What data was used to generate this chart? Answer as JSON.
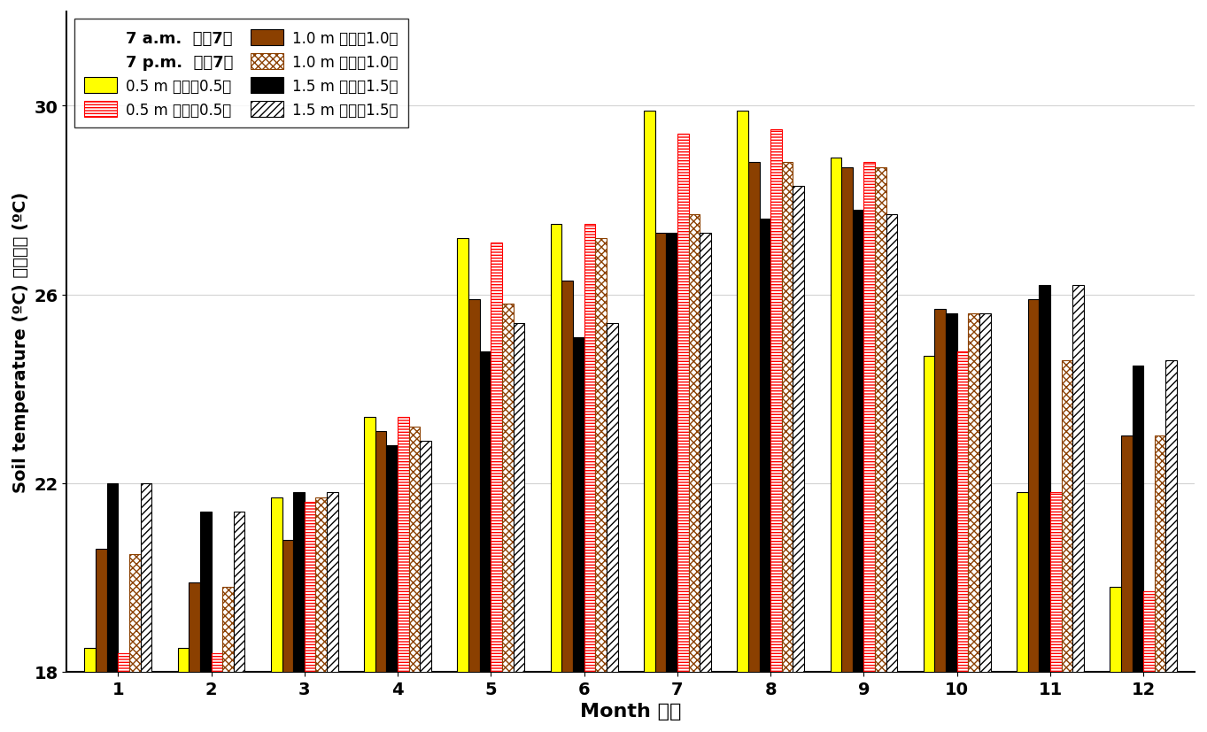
{
  "xlabel": "Month 月份",
  "ylabel": "Soil temperature (ºC) 土壤溫度 (ºC)",
  "months": [
    1,
    2,
    3,
    4,
    5,
    6,
    7,
    8,
    9,
    10,
    11,
    12
  ],
  "am_05": [
    18.5,
    18.5,
    21.7,
    23.4,
    27.2,
    27.5,
    29.9,
    29.9,
    28.9,
    24.7,
    21.8,
    19.8
  ],
  "am_10": [
    20.6,
    19.9,
    20.8,
    23.1,
    25.9,
    26.3,
    27.3,
    28.8,
    28.7,
    25.7,
    25.9,
    23.0
  ],
  "am_15": [
    22.0,
    21.4,
    21.8,
    22.8,
    24.8,
    25.1,
    27.3,
    27.6,
    27.8,
    25.6,
    26.2,
    24.5
  ],
  "pm_05": [
    18.4,
    18.4,
    21.6,
    23.4,
    27.1,
    27.5,
    29.4,
    29.5,
    28.8,
    24.8,
    21.8,
    19.7
  ],
  "pm_10": [
    20.5,
    19.8,
    21.7,
    23.2,
    25.8,
    27.2,
    27.7,
    28.8,
    28.7,
    25.6,
    24.6,
    23.0
  ],
  "pm_15": [
    22.0,
    21.4,
    21.8,
    22.9,
    25.4,
    25.4,
    27.3,
    28.3,
    27.7,
    25.6,
    26.2,
    24.6
  ],
  "ylim": [
    18,
    32
  ],
  "yticks": [
    18,
    22,
    26,
    30
  ],
  "color_am_05": "#FFFF00",
  "color_am_10": "#8B4000",
  "color_am_15": "#000000",
  "legend_header_am": "7 a.m.  上华7時",
  "legend_header_pm": "7 p.m.  下华7時",
  "legend_am_05": "0.5 m 地面下0.5米",
  "legend_am_10": "1.0 m 地面下1.0米",
  "legend_am_15": "1.5 m 地面下1.5米",
  "legend_pm_05": "0.5 m 地面下0.5米",
  "legend_pm_10": "1.0 m 地面下1.0米",
  "legend_pm_15": "1.5 m 地面下1.5米"
}
